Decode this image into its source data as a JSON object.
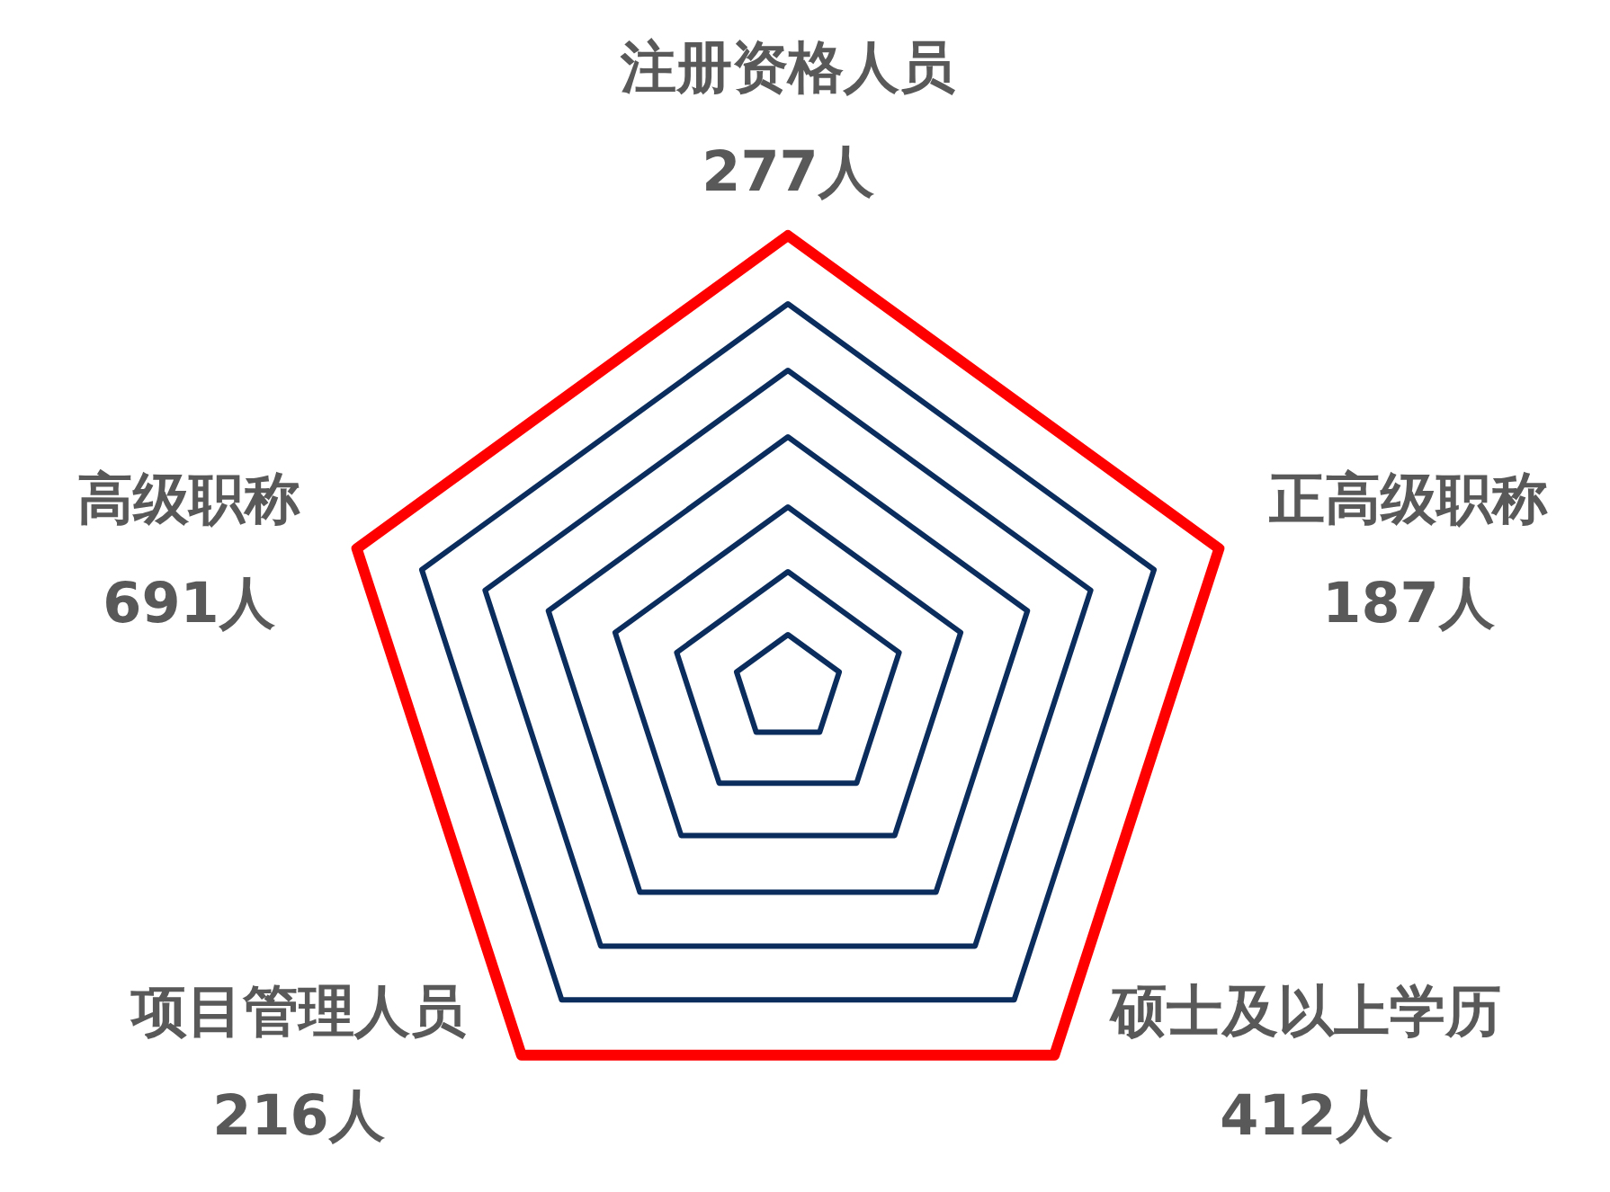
{
  "chart_data": {
    "type": "other",
    "categories": [
      "注册资格人员",
      "正高级职称",
      "硕士及以上学历",
      "项目管理人员",
      "高级职称"
    ],
    "values": [
      277,
      187,
      412,
      216,
      691
    ],
    "value_labels": [
      "277人",
      "187人",
      "412人",
      "216人",
      "691人"
    ]
  }
}
